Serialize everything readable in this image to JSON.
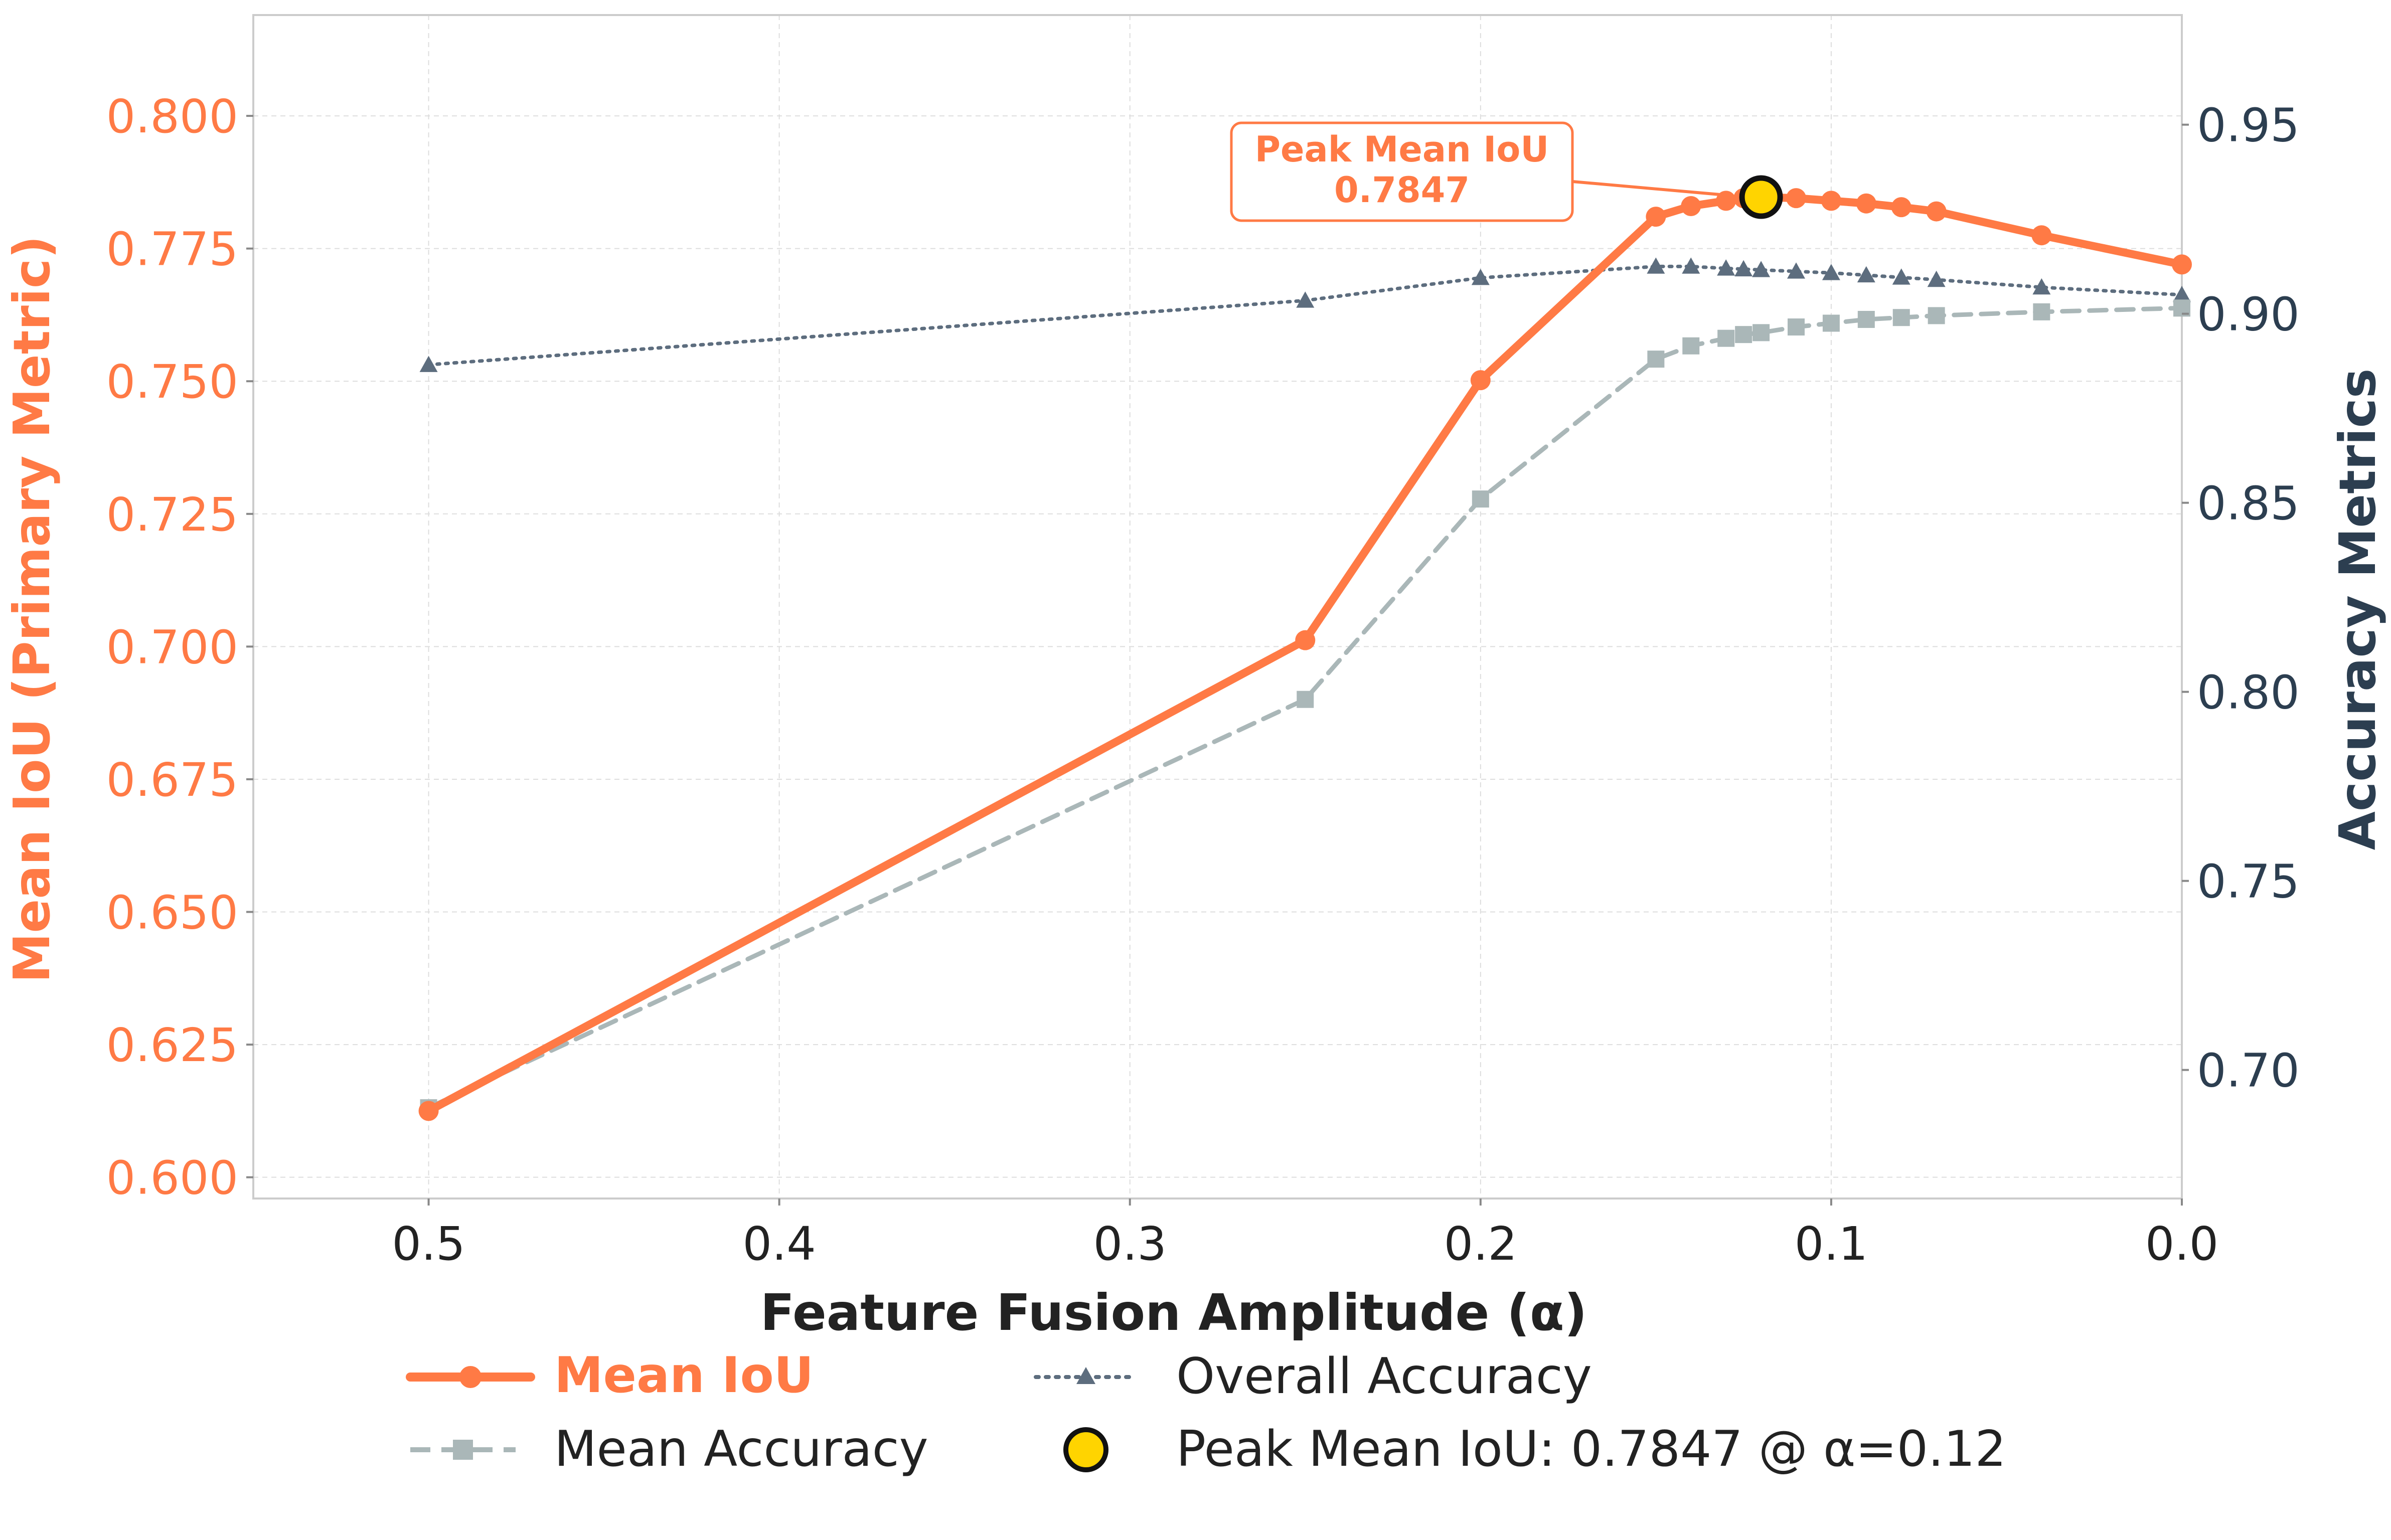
{
  "colors": {
    "iou": "#FF7A45",
    "mean_accuracy": "#AAB7B8",
    "overall_accuracy": "#5D6D7E",
    "right_axis": "#2C3E50",
    "peak_fill": "#FFD400",
    "peak_stroke": "#111111",
    "grid": "#DDDDDD",
    "text_dark": "#222222"
  },
  "chart_data": {
    "type": "line",
    "x": [
      0.5,
      0.25,
      0.2,
      0.15,
      0.14,
      0.13,
      0.125,
      0.12,
      0.11,
      0.1,
      0.09,
      0.08,
      0.07,
      0.04,
      0.0
    ],
    "xlabel": "Feature Fusion Amplitude (α)",
    "xlim": [
      0.55,
      0.0
    ],
    "xticks": [
      "0.5",
      "0.4",
      "0.3",
      "0.2",
      "0.1",
      "0.0"
    ],
    "xtick_values": [
      0.5,
      0.4,
      0.3,
      0.2,
      0.1,
      0.0
    ],
    "left_axis": {
      "label": "Mean IoU (Primary Metric)",
      "ylim": [
        0.596,
        0.819
      ],
      "ticks": [
        "0.600",
        "0.625",
        "0.650",
        "0.675",
        "0.700",
        "0.725",
        "0.750",
        "0.775",
        "0.800"
      ],
      "tick_values": [
        0.6,
        0.625,
        0.65,
        0.675,
        0.7,
        0.725,
        0.75,
        0.775,
        0.8
      ]
    },
    "right_axis": {
      "label": "Accuracy Metrics",
      "ylim": [
        0.666,
        0.979
      ],
      "ticks": [
        "0.70",
        "0.75",
        "0.80",
        "0.85",
        "0.90",
        "0.95"
      ],
      "tick_values": [
        0.7,
        0.75,
        0.8,
        0.85,
        0.9,
        0.95
      ]
    },
    "series": [
      {
        "name": "Mean IoU",
        "axis": "left",
        "values": [
          0.6125,
          0.7012,
          0.7502,
          0.781,
          0.783,
          0.784,
          0.7845,
          0.7847,
          0.7845,
          0.784,
          0.7835,
          0.7828,
          0.782,
          0.7775,
          0.772
        ]
      },
      {
        "name": "Mean Accuracy",
        "axis": "right",
        "values": [
          0.69,
          0.798,
          0.851,
          0.888,
          0.8915,
          0.8935,
          0.8945,
          0.895,
          0.8965,
          0.8975,
          0.8985,
          0.899,
          0.8995,
          0.9005,
          0.9015
        ]
      },
      {
        "name": "Overall Accuracy",
        "axis": "right",
        "values": [
          0.8865,
          0.9035,
          0.9095,
          0.9125,
          0.9125,
          0.912,
          0.9118,
          0.9116,
          0.9112,
          0.9108,
          0.9102,
          0.9096,
          0.909,
          0.907,
          0.905
        ]
      }
    ],
    "peak": {
      "x": 0.12,
      "y": 0.7847,
      "annotation_title": "Peak Mean IoU",
      "annotation_value": "0.7847"
    },
    "legend": [
      {
        "label": "Mean IoU",
        "series": "Mean IoU"
      },
      {
        "label": "Overall Accuracy",
        "series": "Overall Accuracy"
      },
      {
        "label": "Mean Accuracy",
        "series": "Mean Accuracy"
      },
      {
        "label": "Peak Mean IoU: 0.7847 @ α=0.12",
        "series": "peak"
      }
    ],
    "legend_position": "bottom-center",
    "grid": true
  }
}
